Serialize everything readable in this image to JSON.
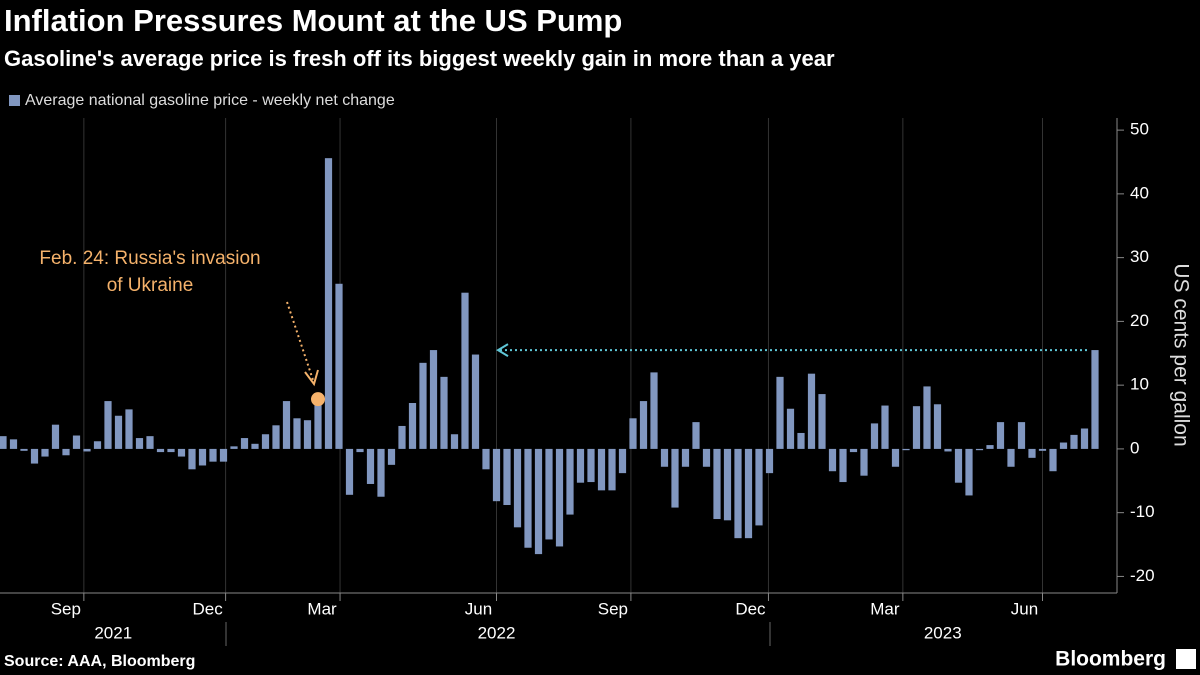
{
  "chart_data": {
    "type": "bar",
    "title": "Inflation Pressures Mount at the US Pump",
    "subtitle": "Gasoline's average price is fresh off its biggest weekly gain in more than a year",
    "legend": "Average national gasoline price - weekly net change",
    "ylabel": "US cents per gallon",
    "source": "Source: AAA, Bloomberg",
    "brand": "Bloomberg",
    "color": "#8197c0",
    "annotation": [
      "Feb. 24: Russia's invasion",
      "of Ukraine"
    ],
    "annotation_color": "#f5b26b",
    "reference_color": "#5fc6d6",
    "categories": [
      null,
      null,
      null,
      null,
      null,
      null,
      null,
      null,
      null,
      null,
      null,
      null,
      null,
      null,
      null,
      null,
      null,
      null,
      null,
      null,
      null,
      null,
      null,
      null,
      null,
      null,
      null,
      null,
      null,
      null,
      null,
      null,
      null,
      null,
      null,
      null,
      null,
      null,
      null,
      null,
      null,
      null,
      null,
      null,
      null,
      null,
      null,
      null,
      null,
      null,
      null,
      null,
      null,
      null,
      null,
      null,
      null,
      null,
      null,
      null,
      null,
      null,
      null,
      null,
      null,
      null,
      null,
      null,
      null,
      null,
      null,
      null,
      null,
      null,
      null,
      null,
      null,
      null,
      null,
      null,
      null,
      null,
      null,
      null,
      null,
      null,
      null,
      null,
      null,
      null,
      null,
      null,
      null,
      null,
      null,
      null,
      null,
      null,
      null,
      null,
      null,
      null,
      null,
      null,
      null
    ],
    "values": [
      2,
      1.5,
      -0.3,
      -2.3,
      -1.2,
      3.8,
      -1,
      2.1,
      -0.4,
      1.2,
      7.5,
      5.2,
      6.2,
      1.7,
      2,
      -0.5,
      -0.5,
      -1.2,
      -3.2,
      -2.6,
      -2,
      -2,
      0.4,
      1.7,
      0.8,
      2.3,
      3.7,
      7.5,
      4.8,
      4.5,
      7.8,
      45.6,
      25.9,
      -7.2,
      -0.5,
      -5.5,
      -7.5,
      -2.5,
      3.6,
      7.2,
      13.5,
      15.5,
      11.3,
      2.3,
      24.5,
      14.8,
      -3.2,
      -8.2,
      -8.8,
      -12.3,
      -15.5,
      -16.5,
      -14.2,
      -15.3,
      -10.3,
      -5.3,
      -5.2,
      -6.5,
      -6.5,
      -3.8,
      4.8,
      7.5,
      12,
      -2.8,
      -9.2,
      -2.8,
      4.2,
      -2.8,
      -11,
      -11.2,
      -14,
      -14,
      -12,
      -3.8,
      11.3,
      6.3,
      2.5,
      11.8,
      8.6,
      -3.5,
      -5.2,
      -0.5,
      -4.2,
      4,
      6.8,
      -2.8,
      -0.2,
      6.7,
      9.8,
      7,
      -0.4,
      -5.3,
      -7.3,
      -0.2,
      0.6,
      4.2,
      -2.8,
      4.2,
      -1.4,
      -0.3,
      -3.5,
      1,
      2.2,
      3.2,
      15.5
    ],
    "ylim": [
      -22.6,
      51.9
    ],
    "yticks": [
      -20,
      -10,
      0,
      10,
      20,
      30,
      40,
      50
    ],
    "xticks": [
      {
        "value": 7.7,
        "label": "Sep"
      },
      {
        "value": 21.2,
        "label": "Dec"
      },
      {
        "value": 32.1,
        "label": "Mar"
      },
      {
        "value": 47,
        "label": "Jun"
      },
      {
        "value": 59.8,
        "label": "Sep"
      },
      {
        "value": 72.9,
        "label": "Dec"
      },
      {
        "value": 85.7,
        "label": "Mar"
      },
      {
        "value": 99,
        "label": "Jun"
      }
    ],
    "year_ticks": [
      {
        "value": 10.5,
        "label": "2021"
      },
      {
        "value": 47,
        "label": "2022"
      },
      {
        "value": 89.5,
        "label": "2023"
      }
    ],
    "grid": true
  }
}
